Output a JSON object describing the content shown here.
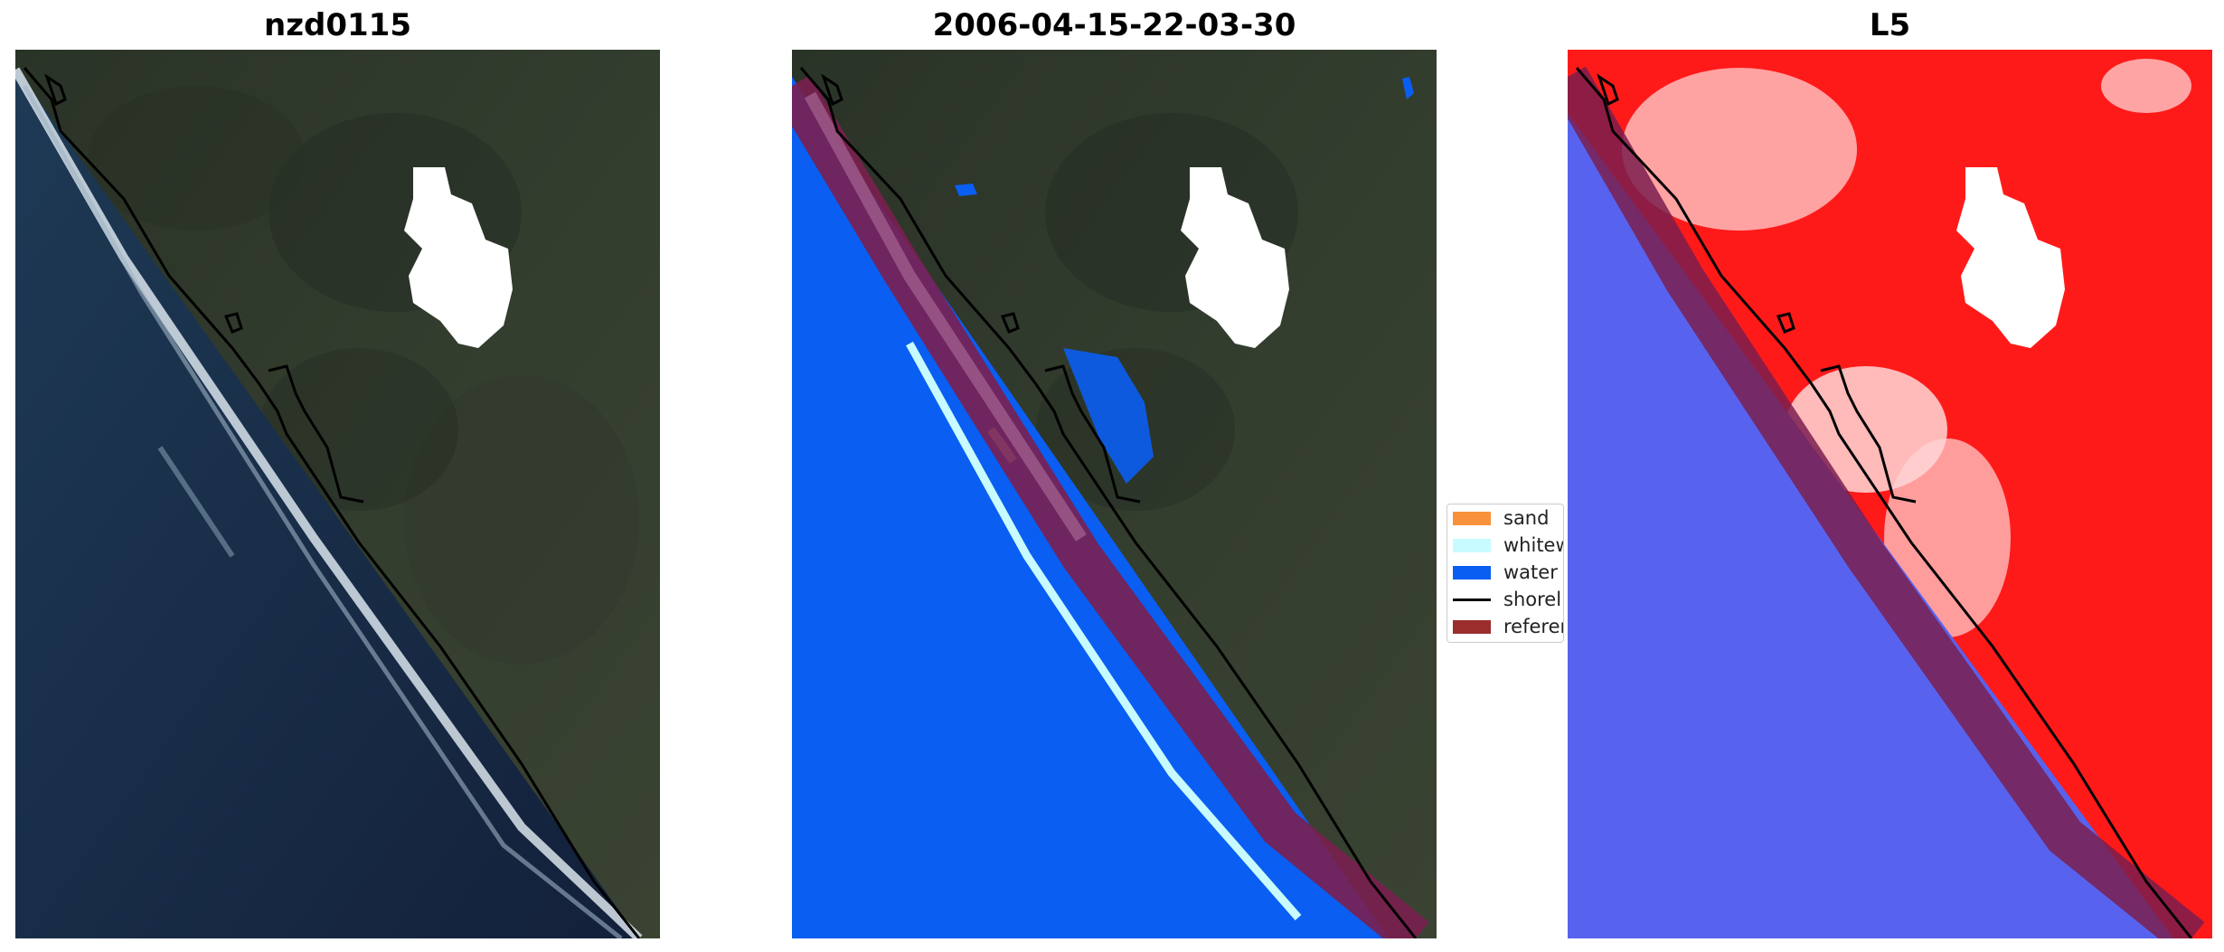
{
  "panels": [
    {
      "title": "nzd0115"
    },
    {
      "title": "2006-04-15-22-03-30"
    },
    {
      "title": "L5"
    }
  ],
  "legend": {
    "items": [
      {
        "label": "sand",
        "color": "#f7923a",
        "kind": "patch"
      },
      {
        "label": "whitewater",
        "color": "#c8fbff",
        "kind": "patch"
      },
      {
        "label": "water",
        "color": "#0a5ef2",
        "kind": "patch"
      },
      {
        "label": "shoreline",
        "color": "#000000",
        "kind": "line"
      },
      {
        "label": "reference shoreline buffer",
        "color": "#9b2d2d",
        "kind": "patch"
      }
    ]
  },
  "colors": {
    "land_dark": "#2b3428",
    "ocean_dark": "#1b2c45",
    "water_class": "#0a5ef2",
    "whitewater_class": "#c8fbff",
    "cloud_mask": "#ffffff",
    "buffer": "#7a1f4f",
    "land_index": "#ff1a1a",
    "water_index": "#5060e8"
  }
}
